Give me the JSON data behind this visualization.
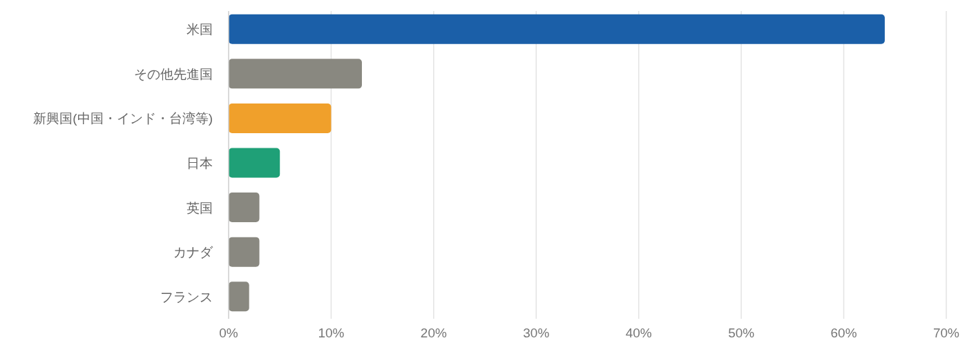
{
  "chart_data": {
    "type": "bar",
    "orientation": "horizontal",
    "categories": [
      "米国",
      "その他先進国",
      "新興国(中国・インド・台湾等)",
      "日本",
      "英国",
      "カナダ",
      "フランス"
    ],
    "values": [
      64,
      13,
      10,
      5,
      3,
      3,
      2
    ],
    "colors": [
      "#1b5fa8",
      "#898880",
      "#f0a02b",
      "#1fa077",
      "#898880",
      "#898880",
      "#898880"
    ],
    "xlim": [
      0,
      70
    ],
    "xticks": [
      {
        "value": 0,
        "label": "0%"
      },
      {
        "value": 10,
        "label": "10%"
      },
      {
        "value": 20,
        "label": "20%"
      },
      {
        "value": 30,
        "label": "30%"
      },
      {
        "value": 40,
        "label": "40%"
      },
      {
        "value": 50,
        "label": "50%"
      },
      {
        "value": 60,
        "label": "60%"
      },
      {
        "value": 70,
        "label": "70%"
      }
    ],
    "grid": "x"
  }
}
